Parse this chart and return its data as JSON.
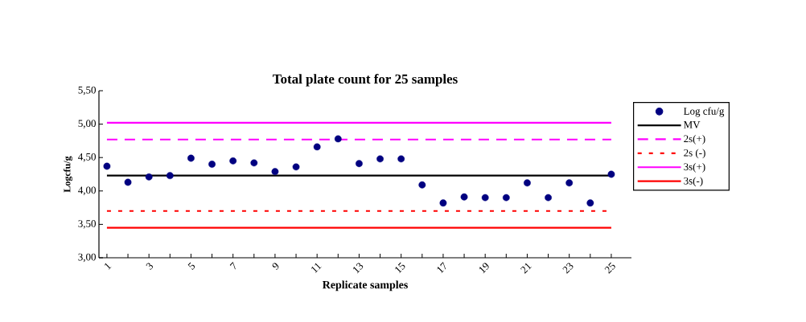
{
  "chart_data": {
    "type": "scatter",
    "title": "Total plate count for 25 samples",
    "xlabel": "Replicate samples",
    "ylabel": "Logcfu/g",
    "categories": [
      "1",
      null,
      "3",
      null,
      "5",
      null,
      "7",
      null,
      "9",
      null,
      "11",
      null,
      "13",
      null,
      "15",
      null,
      "17",
      null,
      "19",
      null,
      "21",
      null,
      "23",
      null,
      "25"
    ],
    "ylim": [
      3.0,
      5.5
    ],
    "yticks": [
      {
        "value": 3.0,
        "label": "3,00"
      },
      {
        "value": 3.5,
        "label": "3,50"
      },
      {
        "value": 4.0,
        "label": "4,00"
      },
      {
        "value": 4.5,
        "label": "4,50"
      },
      {
        "value": 5.0,
        "label": "5,00"
      },
      {
        "value": 5.5,
        "label": "5,50"
      }
    ],
    "legend": "right",
    "grid": false,
    "series": [
      {
        "name": "Log cfu/g",
        "marker": "circle",
        "color": "#000080",
        "values": [
          4.37,
          4.13,
          4.21,
          4.23,
          4.49,
          4.4,
          4.45,
          4.42,
          4.29,
          4.36,
          4.66,
          4.78,
          4.41,
          4.48,
          4.48,
          4.09,
          3.82,
          3.91,
          3.9,
          3.9,
          4.12,
          3.9,
          4.12,
          3.82,
          4.25
        ]
      },
      {
        "name": "MV",
        "type": "line",
        "line_style": "solid",
        "color": "#000000",
        "values": [
          4.23,
          4.23,
          4.23,
          4.23,
          4.23,
          4.23,
          4.23,
          4.23,
          4.23,
          4.23,
          4.23,
          4.23,
          4.23,
          4.23,
          4.23,
          4.23,
          4.23,
          4.23,
          4.23,
          4.23,
          4.23,
          4.23,
          4.23,
          4.23,
          4.23
        ]
      },
      {
        "name": "2s(+)",
        "type": "line",
        "line_style": "dashed",
        "color": "#ff00ff",
        "values": [
          4.77,
          4.77,
          4.77,
          4.77,
          4.77,
          4.77,
          4.77,
          4.77,
          4.77,
          4.77,
          4.77,
          4.77,
          4.77,
          4.77,
          4.77,
          4.77,
          4.77,
          4.77,
          4.77,
          4.77,
          4.77,
          4.77,
          4.77,
          4.77,
          4.77
        ]
      },
      {
        "name": "2s (-)",
        "type": "line",
        "line_style": "dotted",
        "color": "#ff0000",
        "values": [
          3.7,
          3.7,
          3.7,
          3.7,
          3.7,
          3.7,
          3.7,
          3.7,
          3.7,
          3.7,
          3.7,
          3.7,
          3.7,
          3.7,
          3.7,
          3.7,
          3.7,
          3.7,
          3.7,
          3.7,
          3.7,
          3.7,
          3.7,
          3.7,
          3.7
        ]
      },
      {
        "name": "3s(+)",
        "type": "line",
        "line_style": "solid",
        "color": "#ff00ff",
        "values": [
          5.02,
          5.02,
          5.02,
          5.02,
          5.02,
          5.02,
          5.02,
          5.02,
          5.02,
          5.02,
          5.02,
          5.02,
          5.02,
          5.02,
          5.02,
          5.02,
          5.02,
          5.02,
          5.02,
          5.02,
          5.02,
          5.02,
          5.02,
          5.02,
          5.02
        ]
      },
      {
        "name": "3s(-)",
        "type": "line",
        "line_style": "solid",
        "color": "#ff0000",
        "values": [
          3.45,
          3.45,
          3.45,
          3.45,
          3.45,
          3.45,
          3.45,
          3.45,
          3.45,
          3.45,
          3.45,
          3.45,
          3.45,
          3.45,
          3.45,
          3.45,
          3.45,
          3.45,
          3.45,
          3.45,
          3.45,
          3.45,
          3.45,
          3.45,
          3.45
        ]
      }
    ]
  }
}
